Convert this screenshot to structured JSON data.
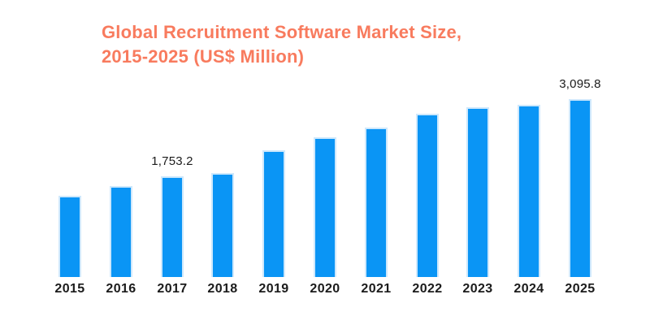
{
  "chart_data": {
    "type": "bar",
    "title": "Global Recruitment Software Market Size, 2015-2025 (US$ Million)",
    "title_lines": [
      "Global Recruitment Software Market Size,",
      "2015-2025 (US$ Million)"
    ],
    "categories": [
      "2015",
      "2016",
      "2017",
      "2018",
      "2019",
      "2020",
      "2021",
      "2022",
      "2023",
      "2024",
      "2025"
    ],
    "values": [
      1410,
      1580,
      1753.2,
      1805,
      2200,
      2430,
      2600,
      2840,
      2960,
      2990,
      3095.8
    ],
    "value_labels": {
      "2017": "1,753.2",
      "2025": "3,095.8"
    },
    "xlabel": "",
    "ylabel": "",
    "ylim": [
      0,
      3300
    ],
    "grid": false,
    "legend_position": "none",
    "axes_visible": false,
    "colors": {
      "bar_fill": "#0A95F5",
      "bar_edge_highlight": "#CEE8FC",
      "title": "#F87B5E",
      "label_text": "#1B1B1B",
      "background": "#FFFFFF"
    }
  }
}
